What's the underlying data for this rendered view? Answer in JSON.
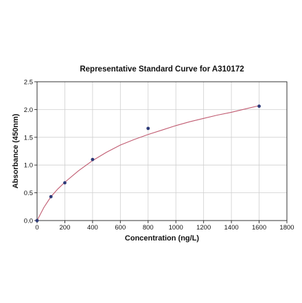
{
  "chart_data": {
    "type": "scatter",
    "title": "Representative Standard Curve for A310172",
    "xlabel": "Concentration (ng/L)",
    "ylabel": "Absorbance (450nm)",
    "xlim": [
      0,
      1800
    ],
    "ylim": [
      0,
      2.5
    ],
    "xticks": [
      "0",
      "200",
      "400",
      "600",
      "800",
      "1000",
      "1200",
      "1400",
      "1600",
      "1800"
    ],
    "yticks": [
      "0.0",
      "0.5",
      "1.0",
      "1.5",
      "2.0",
      "2.5"
    ],
    "grid": true,
    "points": [
      {
        "x": 0,
        "y": 0.0
      },
      {
        "x": 100,
        "y": 0.43
      },
      {
        "x": 200,
        "y": 0.68
      },
      {
        "x": 400,
        "y": 1.1
      },
      {
        "x": 800,
        "y": 1.66
      },
      {
        "x": 1600,
        "y": 2.06
      }
    ],
    "fit_curve": {
      "x": [
        0,
        50,
        100,
        150,
        200,
        300,
        400,
        500,
        600,
        700,
        800,
        900,
        1000,
        1100,
        1200,
        1300,
        1400,
        1500,
        1600
      ],
      "y": [
        0.0,
        0.24,
        0.43,
        0.57,
        0.69,
        0.9,
        1.08,
        1.23,
        1.36,
        1.46,
        1.55,
        1.63,
        1.71,
        1.78,
        1.84,
        1.9,
        1.95,
        2.01,
        2.07
      ]
    },
    "colors": {
      "curve": "#c05a70",
      "points": "#2d3a78"
    }
  }
}
